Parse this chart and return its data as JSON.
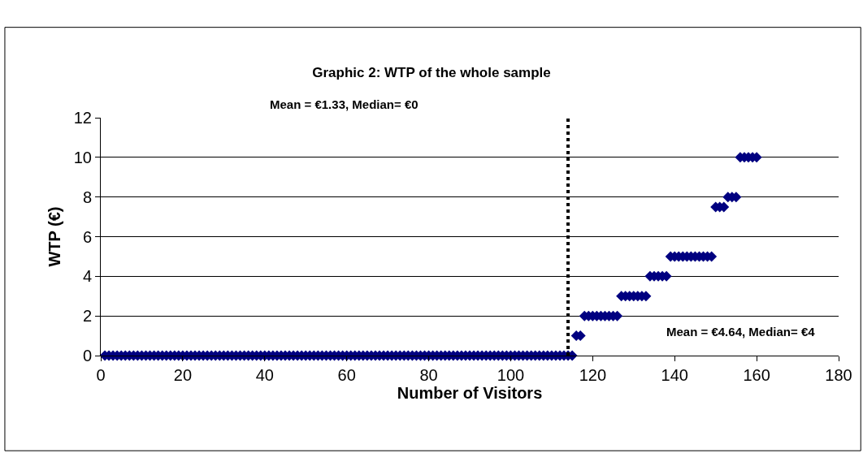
{
  "chart_data": {
    "type": "scatter",
    "title": "Graphic 2: WTP of the whole sample",
    "xlabel": "Number of Visitors",
    "ylabel": "WTP (€)",
    "annotations": [
      "Mean = €1.33, Median= €0",
      "Mean = €4.64, Median= €4"
    ],
    "x": [
      1,
      2,
      3,
      4,
      5,
      6,
      7,
      8,
      9,
      10,
      11,
      12,
      13,
      14,
      15,
      16,
      17,
      18,
      19,
      20,
      21,
      22,
      23,
      24,
      25,
      26,
      27,
      28,
      29,
      30,
      31,
      32,
      33,
      34,
      35,
      36,
      37,
      38,
      39,
      40,
      41,
      42,
      43,
      44,
      45,
      46,
      47,
      48,
      49,
      50,
      51,
      52,
      53,
      54,
      55,
      56,
      57,
      58,
      59,
      60,
      61,
      62,
      63,
      64,
      65,
      66,
      67,
      68,
      69,
      70,
      71,
      72,
      73,
      74,
      75,
      76,
      77,
      78,
      79,
      80,
      81,
      82,
      83,
      84,
      85,
      86,
      87,
      88,
      89,
      90,
      91,
      92,
      93,
      94,
      95,
      96,
      97,
      98,
      99,
      100,
      101,
      102,
      103,
      104,
      105,
      106,
      107,
      108,
      109,
      110,
      111,
      112,
      113,
      114,
      115,
      116,
      117,
      118,
      119,
      120,
      121,
      122,
      123,
      124,
      125,
      126,
      127,
      128,
      129,
      130,
      131,
      132,
      133,
      134,
      135,
      136,
      137,
      138,
      139,
      140,
      141,
      142,
      143,
      144,
      145,
      146,
      147,
      148,
      149,
      150,
      151,
      152,
      153,
      154,
      155,
      156,
      157,
      158,
      159,
      160
    ],
    "values": [
      0,
      0,
      0,
      0,
      0,
      0,
      0,
      0,
      0,
      0,
      0,
      0,
      0,
      0,
      0,
      0,
      0,
      0,
      0,
      0,
      0,
      0,
      0,
      0,
      0,
      0,
      0,
      0,
      0,
      0,
      0,
      0,
      0,
      0,
      0,
      0,
      0,
      0,
      0,
      0,
      0,
      0,
      0,
      0,
      0,
      0,
      0,
      0,
      0,
      0,
      0,
      0,
      0,
      0,
      0,
      0,
      0,
      0,
      0,
      0,
      0,
      0,
      0,
      0,
      0,
      0,
      0,
      0,
      0,
      0,
      0,
      0,
      0,
      0,
      0,
      0,
      0,
      0,
      0,
      0,
      0,
      0,
      0,
      0,
      0,
      0,
      0,
      0,
      0,
      0,
      0,
      0,
      0,
      0,
      0,
      0,
      0,
      0,
      0,
      0,
      0,
      0,
      0,
      0,
      0,
      0,
      0,
      0,
      0,
      0,
      0,
      0,
      0,
      0,
      0,
      1,
      1,
      2,
      2,
      2,
      2,
      2,
      2,
      2,
      2,
      2,
      3,
      3,
      3,
      3,
      3,
      3,
      3,
      4,
      4,
      4,
      4,
      4,
      5,
      5,
      5,
      5,
      5,
      5,
      5,
      5,
      5,
      5,
      5,
      7.5,
      7.5,
      7.5,
      8,
      8,
      8,
      10,
      10,
      10,
      10,
      10
    ],
    "color": "#000080",
    "marker": "diamond",
    "xlim": [
      0,
      180
    ],
    "xticks": [
      0,
      20,
      40,
      60,
      80,
      100,
      120,
      140,
      160,
      180
    ],
    "ylim": [
      0,
      12
    ],
    "yticks": [
      0,
      2,
      4,
      6,
      8,
      10,
      12
    ],
    "grid": "y",
    "legend": false,
    "ref_lines": [
      {
        "axis": "x",
        "value": 114,
        "color": "#000000",
        "line_style": "dotted"
      }
    ]
  }
}
